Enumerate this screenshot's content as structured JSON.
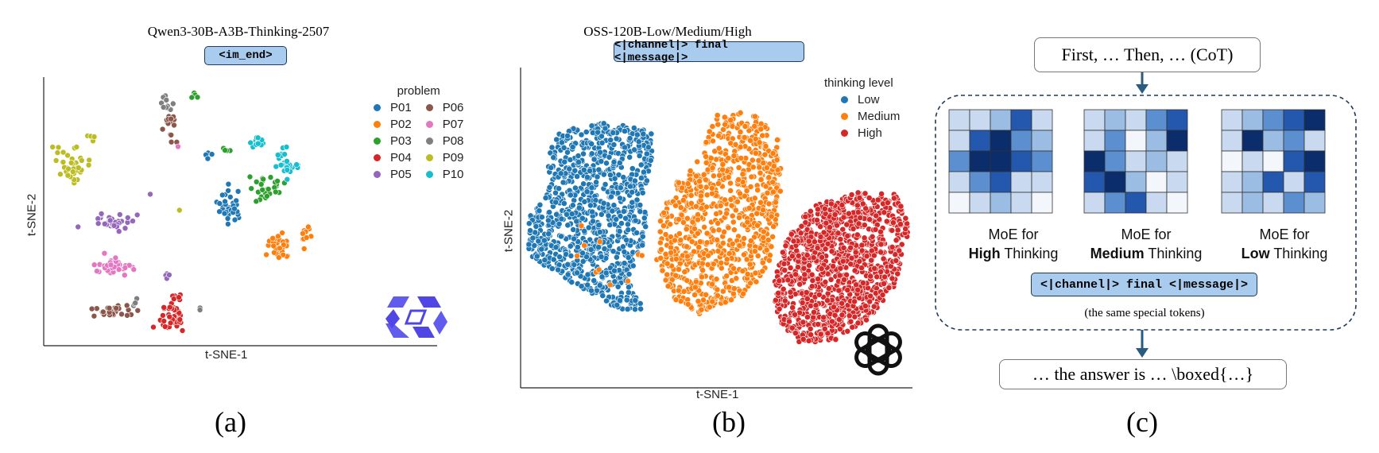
{
  "panel_a": {
    "title": "Qwen3-30B-A3B-Thinking-2507",
    "token": "<im_end>",
    "x_label": "t-SNE-1",
    "y_label": "t-SNE-2",
    "legend_title": "problem",
    "caption": "(a)",
    "logo": "qwen-logo",
    "chart_data": {
      "type": "scatter",
      "title": "Qwen3-30B-A3B-Thinking-2507",
      "xlabel": "t-SNE-1",
      "ylabel": "t-SNE-2",
      "legend_title": "problem",
      "legend_placement": "top-right",
      "grid": false,
      "series": [
        {
          "name": "P01",
          "color": "#1f77b4"
        },
        {
          "name": "P02",
          "color": "#ff7f0e"
        },
        {
          "name": "P03",
          "color": "#2ca02c"
        },
        {
          "name": "P04",
          "color": "#d62728"
        },
        {
          "name": "P05",
          "color": "#9467bd"
        },
        {
          "name": "P06",
          "color": "#8c564b"
        },
        {
          "name": "P07",
          "color": "#e377c2"
        },
        {
          "name": "P08",
          "color": "#7f7f7f"
        },
        {
          "name": "P09",
          "color": "#bcbd22"
        },
        {
          "name": "P10",
          "color": "#17becf"
        }
      ]
    }
  },
  "panel_b": {
    "title": "OSS-120B-Low/Medium/High",
    "token": "<|channel|> final <|message|>",
    "x_label": "t-SNE-1",
    "y_label": "t-SNE-2",
    "legend_title": "thinking level",
    "caption": "(b)",
    "logo": "openai-logo",
    "chart_data": {
      "type": "scatter",
      "title": "OSS-120B-Low/Medium/High",
      "xlabel": "t-SNE-1",
      "ylabel": "t-SNE-2",
      "legend_title": "thinking level",
      "legend_placement": "top-right",
      "grid": false,
      "series": [
        {
          "name": "Low",
          "color": "#1f77b4"
        },
        {
          "name": "Medium",
          "color": "#ff7f0e"
        },
        {
          "name": "High",
          "color": "#d62728"
        }
      ]
    }
  },
  "panel_c": {
    "cot_text": "First, … Then, … (CoT)",
    "moe_prefix": "MoE for",
    "moe_suffix": "Thinking",
    "moe": [
      {
        "level": "High",
        "grid": [
          [
            1,
            1,
            2,
            4,
            1
          ],
          [
            1,
            4,
            5,
            3,
            2
          ],
          [
            3,
            5,
            5,
            4,
            3
          ],
          [
            1,
            3,
            4,
            1,
            1
          ],
          [
            0,
            1,
            2,
            1,
            0
          ]
        ]
      },
      {
        "level": "Medium",
        "grid": [
          [
            1,
            2,
            1,
            3,
            4
          ],
          [
            1,
            3,
            0,
            2,
            5
          ],
          [
            5,
            3,
            1,
            2,
            1
          ],
          [
            4,
            5,
            2,
            0,
            1
          ],
          [
            1,
            3,
            4,
            1,
            0
          ]
        ]
      },
      {
        "level": "Low",
        "grid": [
          [
            1,
            2,
            3,
            4,
            5
          ],
          [
            1,
            5,
            2,
            3,
            1
          ],
          [
            0,
            1,
            0,
            4,
            5
          ],
          [
            1,
            2,
            4,
            1,
            4
          ],
          [
            1,
            2,
            1,
            3,
            2
          ]
        ]
      }
    ],
    "token": "<|channel|> final <|message|>",
    "same_tokens_note": "(the same special tokens)",
    "answer_text": "… the answer is … \\boxed{…}",
    "caption": "(c)"
  }
}
